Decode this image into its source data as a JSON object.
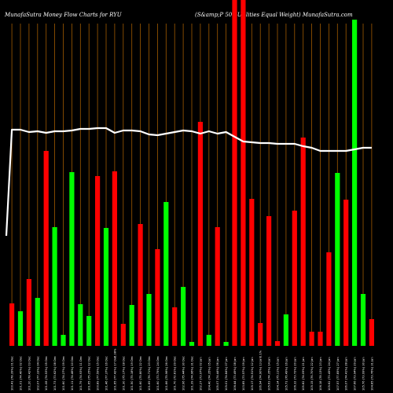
{
  "chart_data": {
    "type": "bar",
    "title": "MunafaSutra  Money Flow  Charts for RYU",
    "subtitle": "(S&amp;P 500  Utilities Equal Weight) MunafaSutra.com",
    "colors": {
      "up": "#00ff00",
      "down": "#ff0000",
      "grid": "#a05a00",
      "line": "#ffffff",
      "background": "#000000"
    },
    "ylim": [
      0,
      440
    ],
    "categories": [
      "100.41 (78.39%) 01 Dec",
      "101.01 (74.40%) 02 Dec",
      "101.20 (78.42%) 03 Dec",
      "102.07 (77.33%) 04 Dec",
      "101.08 (74.53%) 05 Dec",
      "101.73 (73.62%) 08 Dec",
      "101.60 (74.27%) 09 Dec",
      "101.11 (74.46%) 10 Dec",
      "101.79 (74.93%) 11 Dec",
      "101.65 (75.25%) 12 Dec",
      "100.89 (77.59%) 15 Dec",
      "101.46 (77.37%) 16 Dec",
      "101.65 (77.42%) 17 Dec",
      "101.30 (75.17%) 18 Dec",
      "101.50 (75.18%) 19 Dec",
      "101.60 (75.80%) 22 Dec",
      "101.69 (76.71%) 23 Dec",
      "101.60 (73.75%) 24 Dec",
      "101.66 (75.96%) 26 Dec",
      "101.70 (72.81%) 29 Dec",
      "102.96 (75.44%) 30 Dec",
      "101.39 (74.96%) 31 Dec",
      "102.27 (73.97%) 02 Jan",
      "104.40 (74.35%) 05 Jan",
      "105.07 (74.44%) 06 Jan",
      "105.01 (74.84%) 07 Jan",
      "106.44 (73.49%) 08 Jan",
      "103.85 (73.57%) 09 Jan",
      "105.17 (74.51%) 12 Jan",
      "106.94 (74.90%) 13 Jan",
      "105.63 (74.35%) 14 Jan",
      "104.14 (75.11%) 15 Jan",
      "105.71 (76.49%) 16 Jan",
      "106.32 (73.72%) 20 Jan",
      "105.82 (74.09%) 21 Jan",
      "105.15 (76.70%) 22 Jan",
      "106.18 (78.13%) 23 Jan",
      "105.62 (73.45%) 24 Jan",
      "107.57 (77.85%) 27 Jan",
      "106.07 (74.41%) 28 Jan",
      "107.66 (73.94%) 29 Jan",
      "105.76 (73.99%) 30 Jan",
      "104.85 (73.76%) 31 Jan"
    ],
    "extra_label": "0.38%",
    "extra_label_index": 12,
    "extra_label2": "0.1%",
    "extra_label2_index": 29,
    "values": [
      54,
      44,
      85,
      61,
      248,
      151,
      14,
      221,
      53,
      38,
      216,
      150,
      222,
      28,
      52,
      155,
      66,
      123,
      183,
      49,
      75,
      5,
      285,
      14,
      151,
      5,
      440,
      440,
      187,
      29,
      165,
      6,
      40,
      172,
      265,
      18,
      18,
      119,
      220,
      186,
      415,
      66,
      34
    ],
    "directions": [
      "down",
      "up",
      "down",
      "up",
      "down",
      "up",
      "up",
      "up",
      "up",
      "up",
      "down",
      "up",
      "down",
      "down",
      "up",
      "down",
      "up",
      "down",
      "up",
      "down",
      "up",
      "up",
      "down",
      "up",
      "down",
      "up",
      "down",
      "down",
      "down",
      "down",
      "down",
      "down",
      "up",
      "down",
      "down",
      "down",
      "down",
      "down",
      "up",
      "down",
      "up",
      "up",
      "down"
    ],
    "line": [
      275,
      275,
      272,
      273,
      271,
      273,
      273,
      274,
      276,
      276,
      277,
      277,
      271,
      274,
      274,
      273,
      269,
      268,
      270,
      272,
      274,
      273,
      270,
      273,
      270,
      272,
      266,
      260,
      259,
      258,
      258,
      257,
      257,
      257,
      254,
      252,
      248,
      248,
      248,
      248,
      250,
      252,
      252
    ]
  }
}
